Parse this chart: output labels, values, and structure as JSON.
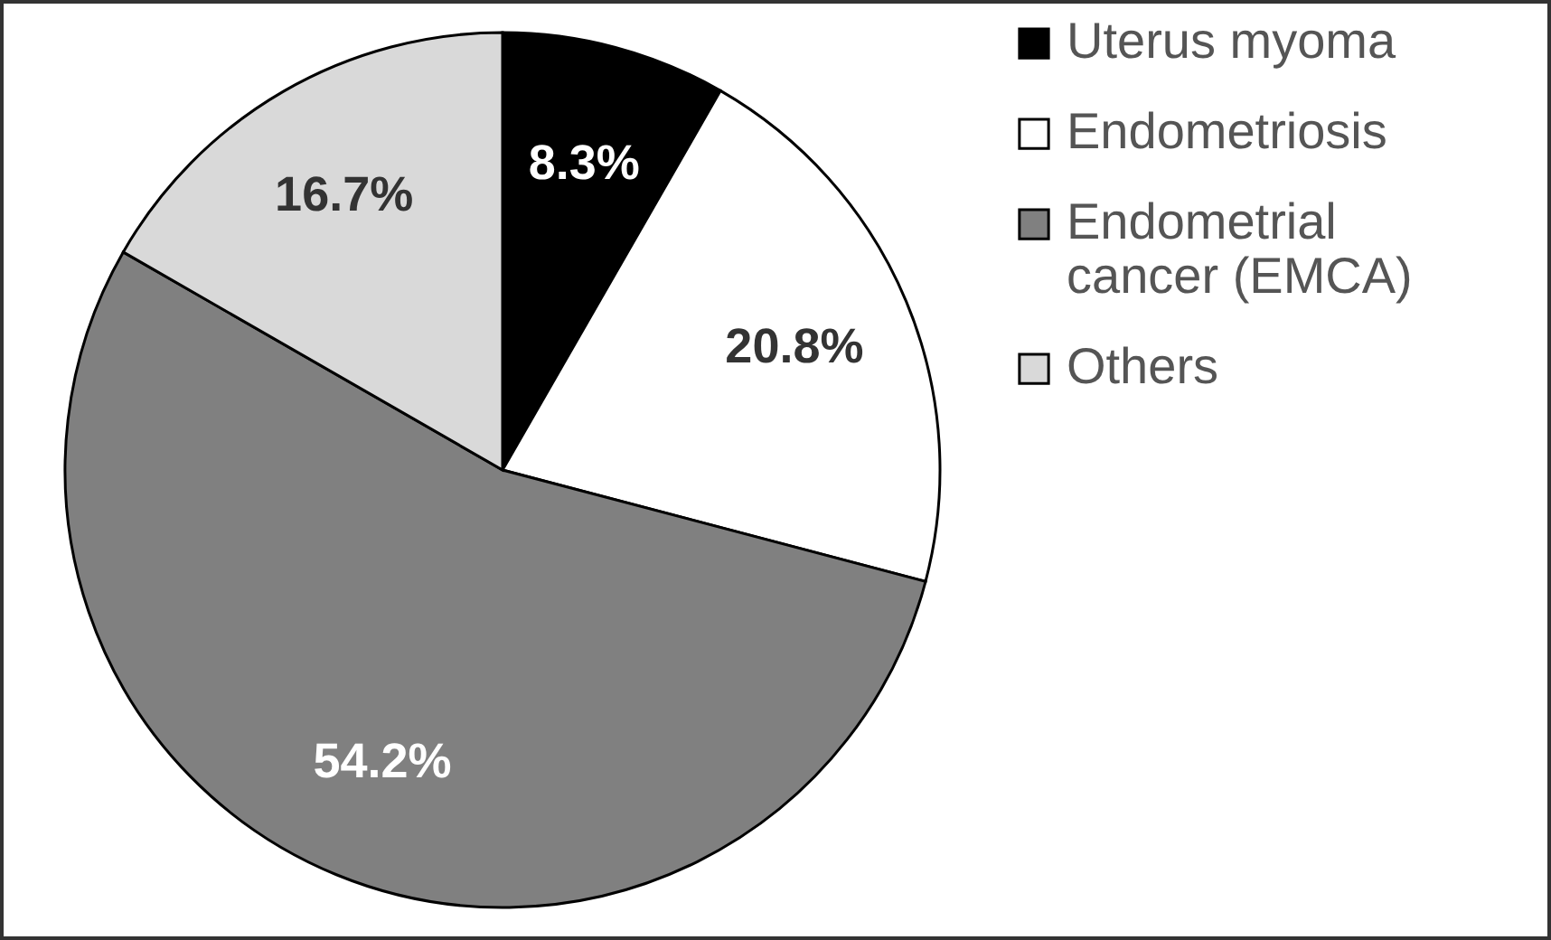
{
  "chart_data": {
    "type": "pie",
    "categories": [
      "Uterus myoma",
      "Endometriosis",
      "Endometrial cancer (EMCA)",
      "Others"
    ],
    "values": [
      8.3,
      20.8,
      54.2,
      16.7
    ],
    "colors": [
      "#000000",
      "#ffffff",
      "#808080",
      "#d9d9d9"
    ],
    "value_labels": [
      "8.3%",
      "20.8%",
      "54.2%",
      "16.7%"
    ],
    "legend": "right"
  }
}
